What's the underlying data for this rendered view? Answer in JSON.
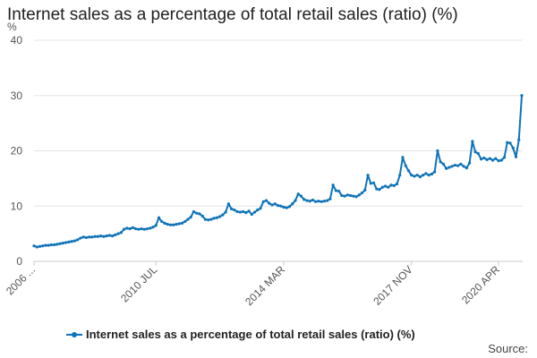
{
  "chart_data": {
    "type": "line",
    "title": "Internet sales as a percentage of total retail sales (ratio) (%)",
    "ylabel": "%",
    "xlabel": "",
    "ylim": [
      0,
      40
    ],
    "y_ticks": [
      0,
      10,
      20,
      30,
      40
    ],
    "x_tick_labels": [
      "2006 ...",
      "2010 JUL",
      "2014 MAR",
      "2017 NOV",
      "2020 APR"
    ],
    "x_tick_indices": [
      0,
      42,
      86,
      130,
      160
    ],
    "grid": "horizontal",
    "legend_position": "bottom",
    "color": "#0f73b9",
    "series": [
      {
        "name": "Internet sales as a percentage of total retail sales (ratio) (%)",
        "values": [
          2.8,
          2.6,
          2.7,
          2.8,
          2.9,
          2.9,
          3.0,
          3.0,
          3.1,
          3.2,
          3.3,
          3.4,
          3.5,
          3.6,
          3.7,
          3.9,
          4.2,
          4.4,
          4.3,
          4.4,
          4.4,
          4.5,
          4.5,
          4.6,
          4.5,
          4.6,
          4.7,
          4.6,
          4.8,
          5.0,
          5.2,
          5.8,
          6.0,
          5.9,
          6.1,
          5.9,
          5.8,
          5.9,
          5.8,
          5.9,
          6.0,
          6.2,
          6.5,
          7.9,
          7.2,
          6.9,
          6.7,
          6.6,
          6.6,
          6.7,
          6.8,
          6.9,
          7.2,
          7.6,
          8.0,
          9.0,
          8.7,
          8.6,
          8.2,
          7.6,
          7.5,
          7.6,
          7.8,
          7.9,
          8.1,
          8.4,
          8.9,
          10.4,
          9.5,
          9.3,
          9.0,
          8.9,
          9.0,
          8.8,
          9.1,
          8.5,
          8.9,
          9.3,
          9.6,
          10.8,
          11.0,
          10.5,
          10.2,
          10.4,
          10.1,
          10.0,
          9.8,
          9.7,
          9.9,
          10.4,
          11.0,
          12.2,
          11.8,
          11.2,
          11.0,
          10.9,
          11.1,
          10.8,
          10.9,
          10.8,
          10.9,
          11.0,
          11.3,
          13.8,
          12.8,
          12.7,
          11.9,
          11.8,
          12.0,
          11.9,
          11.8,
          11.7,
          12.0,
          12.4,
          12.9,
          15.6,
          14.1,
          14.2,
          13.1,
          13.0,
          13.4,
          13.6,
          13.4,
          13.8,
          13.7,
          14.0,
          15.6,
          18.8,
          17.3,
          16.4,
          15.6,
          15.4,
          15.6,
          15.3,
          15.6,
          15.9,
          15.6,
          15.8,
          16.2,
          20.0,
          18.0,
          17.6,
          16.8,
          17.0,
          17.2,
          17.4,
          17.3,
          17.6,
          17.2,
          16.9,
          17.8,
          21.7,
          19.8,
          19.5,
          18.5,
          18.7,
          18.4,
          18.6,
          18.3,
          18.6,
          18.2,
          18.3,
          18.8,
          21.5,
          21.4,
          20.5,
          18.9,
          22.0,
          30.0
        ]
      }
    ]
  },
  "source_label": "Source:"
}
